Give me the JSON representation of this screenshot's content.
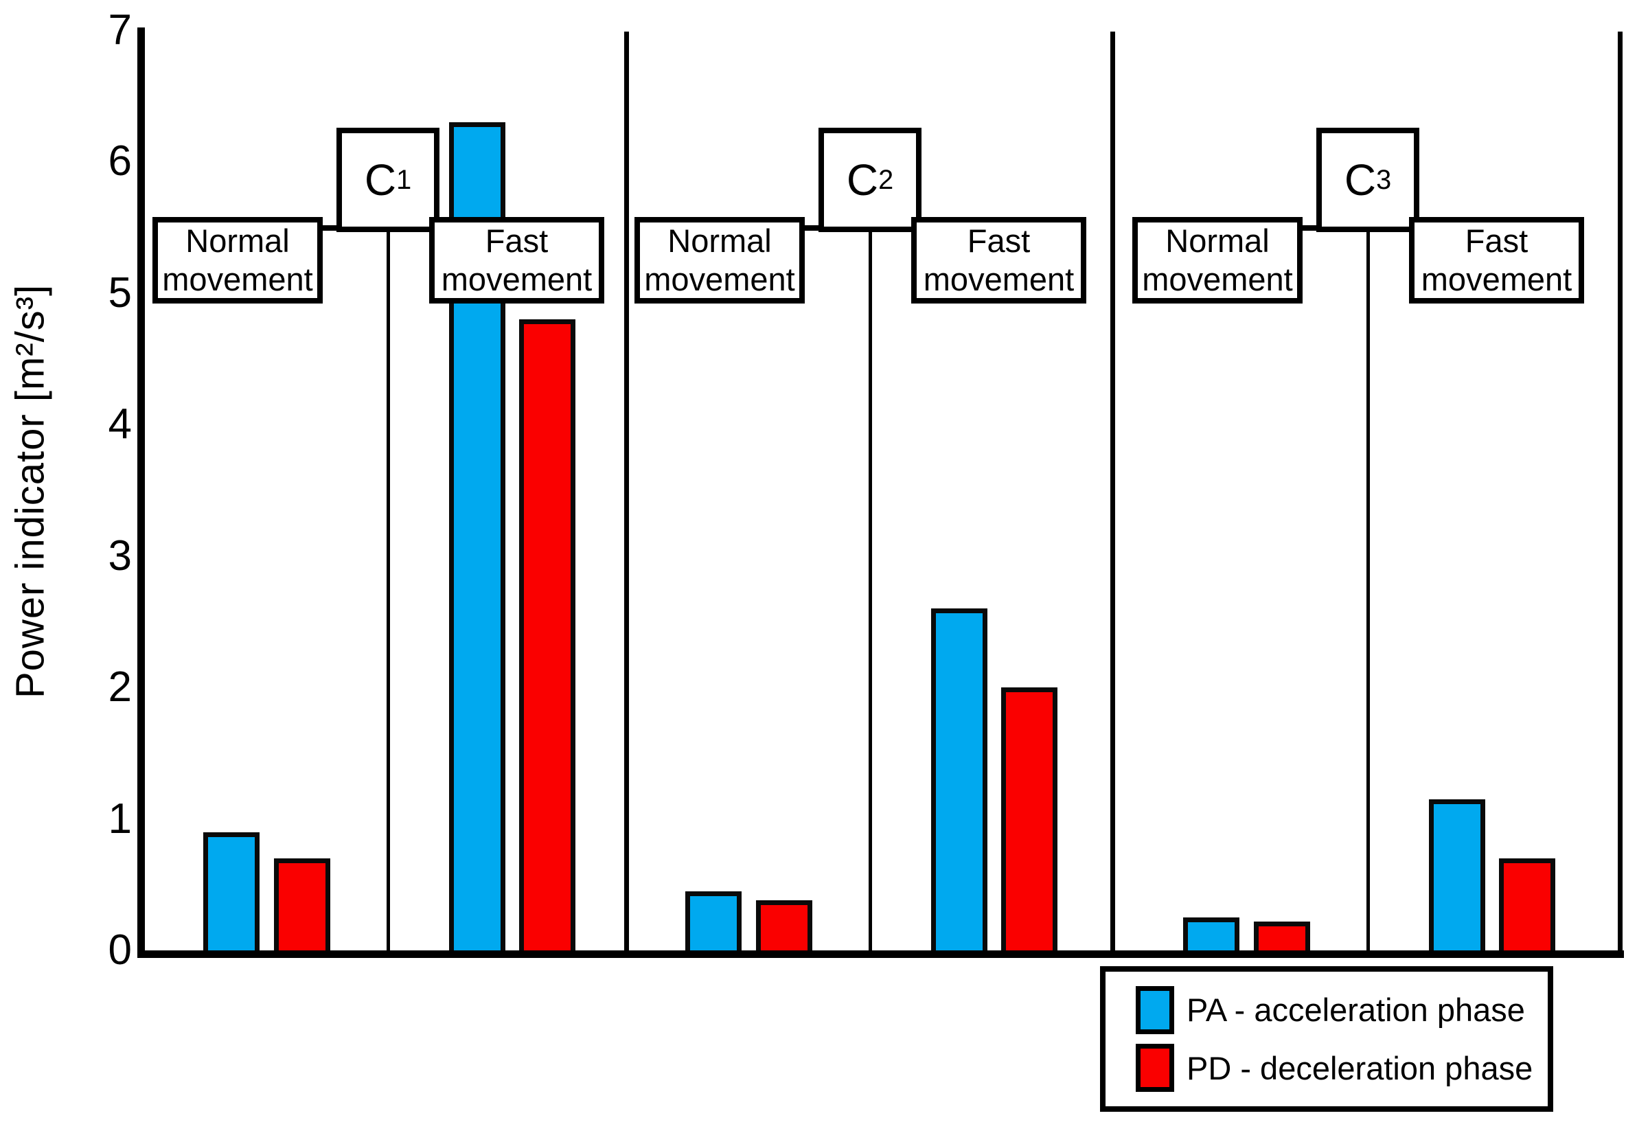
{
  "chart_data": {
    "type": "bar",
    "title": "",
    "ylabel": "Power indicator [m²/s³]",
    "xlabel": "",
    "ylim": [
      0,
      7
    ],
    "yticks": [
      0,
      1,
      2,
      3,
      4,
      5,
      6,
      7
    ],
    "grid": false,
    "legend_position": "bottom-right",
    "series": [
      {
        "key": "PA",
        "name": "PA - acceleration phase",
        "color": "#00A9EF"
      },
      {
        "key": "PD",
        "name": "PD - deceleration phase",
        "color": "#FA0000"
      }
    ],
    "groups": [
      {
        "label_main": "C",
        "label_sub": "1",
        "conditions": [
          {
            "label": "Normal movement",
            "PA": 0.9,
            "PD": 0.7
          },
          {
            "label": "Fast movement",
            "PA": 6.3,
            "PD": 4.8
          }
        ]
      },
      {
        "label_main": "C",
        "label_sub": "2",
        "conditions": [
          {
            "label": "Normal movement",
            "PA": 0.45,
            "PD": 0.38
          },
          {
            "label": "Fast movement",
            "PA": 2.6,
            "PD": 2.0
          }
        ]
      },
      {
        "label_main": "C",
        "label_sub": "3",
        "conditions": [
          {
            "label": "Normal movement",
            "PA": 0.25,
            "PD": 0.22
          },
          {
            "label": "Fast movement",
            "PA": 1.15,
            "PD": 0.7
          }
        ]
      }
    ]
  }
}
